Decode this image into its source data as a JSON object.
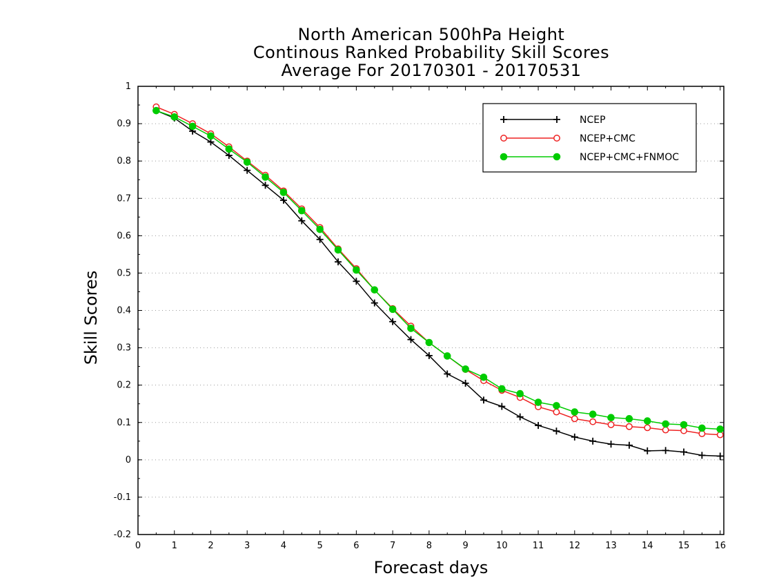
{
  "chart_data": {
    "type": "line",
    "title": [
      "North American 500hPa Height",
      "Continous Ranked Probability Skill Scores",
      "Average For 20170301 - 20170531"
    ],
    "xlabel": "Forecast days",
    "ylabel": "Skill Scores",
    "xlim": [
      0,
      16.1
    ],
    "ylim": [
      -0.2,
      1
    ],
    "xticks": [
      0,
      1,
      2,
      3,
      4,
      5,
      6,
      7,
      8,
      9,
      10,
      11,
      12,
      13,
      14,
      15,
      16
    ],
    "xtick_labels": [
      "0",
      "1",
      "2",
      "3",
      "4",
      "5",
      "6",
      "7",
      "8",
      "9",
      "10",
      "11",
      "12",
      "13",
      "14",
      "15",
      "16"
    ],
    "yticks": [
      -0.2,
      -0.1,
      0,
      0.1,
      0.2,
      0.3,
      0.4,
      0.5,
      0.6,
      0.7,
      0.8,
      0.9,
      1
    ],
    "ytick_labels": [
      "-0.2",
      "-0.1",
      "0",
      "0.1",
      "0.2",
      "0.3",
      "0.4",
      "0.5",
      "0.6",
      "0.7",
      "0.8",
      "0.9",
      "1"
    ],
    "grid": true,
    "legend_position": "top-right",
    "x": [
      0.5,
      1,
      1.5,
      2,
      2.5,
      3,
      3.5,
      4,
      4.5,
      5,
      5.5,
      6,
      6.5,
      7,
      7.5,
      8,
      8.5,
      9,
      9.5,
      10,
      10.5,
      11,
      11.5,
      12,
      12.5,
      13,
      13.5,
      14,
      14.5,
      15,
      15.5,
      16
    ],
    "series": [
      {
        "name": "NCEP",
        "color": "#000000",
        "marker": "plus",
        "values": [
          0.935,
          0.915,
          0.88,
          0.851,
          0.815,
          0.775,
          0.735,
          0.695,
          0.64,
          0.59,
          0.53,
          0.478,
          0.42,
          0.37,
          0.322,
          0.279,
          0.23,
          0.205,
          0.16,
          0.143,
          0.115,
          0.092,
          0.077,
          0.061,
          0.05,
          0.042,
          0.039,
          0.024,
          0.025,
          0.021,
          0.012,
          0.01
        ]
      },
      {
        "name": "NCEP+CMC",
        "color": "#ee2222",
        "marker": "open-circle",
        "values": [
          0.945,
          0.925,
          0.9,
          0.873,
          0.838,
          0.8,
          0.762,
          0.72,
          0.672,
          0.622,
          0.565,
          0.512,
          0.455,
          0.405,
          0.358,
          0.314,
          0.278,
          0.242,
          0.212,
          0.186,
          0.167,
          0.142,
          0.128,
          0.11,
          0.102,
          0.094,
          0.089,
          0.086,
          0.08,
          0.078,
          0.07,
          0.067
        ]
      },
      {
        "name": "NCEP+CMC+FNMOC",
        "color": "#00cc00",
        "marker": "filled-circle",
        "values": [
          0.935,
          0.918,
          0.893,
          0.867,
          0.832,
          0.797,
          0.757,
          0.716,
          0.667,
          0.617,
          0.562,
          0.508,
          0.455,
          0.403,
          0.352,
          0.314,
          0.278,
          0.243,
          0.221,
          0.19,
          0.177,
          0.154,
          0.145,
          0.128,
          0.122,
          0.113,
          0.11,
          0.104,
          0.096,
          0.094,
          0.085,
          0.082
        ]
      }
    ]
  }
}
